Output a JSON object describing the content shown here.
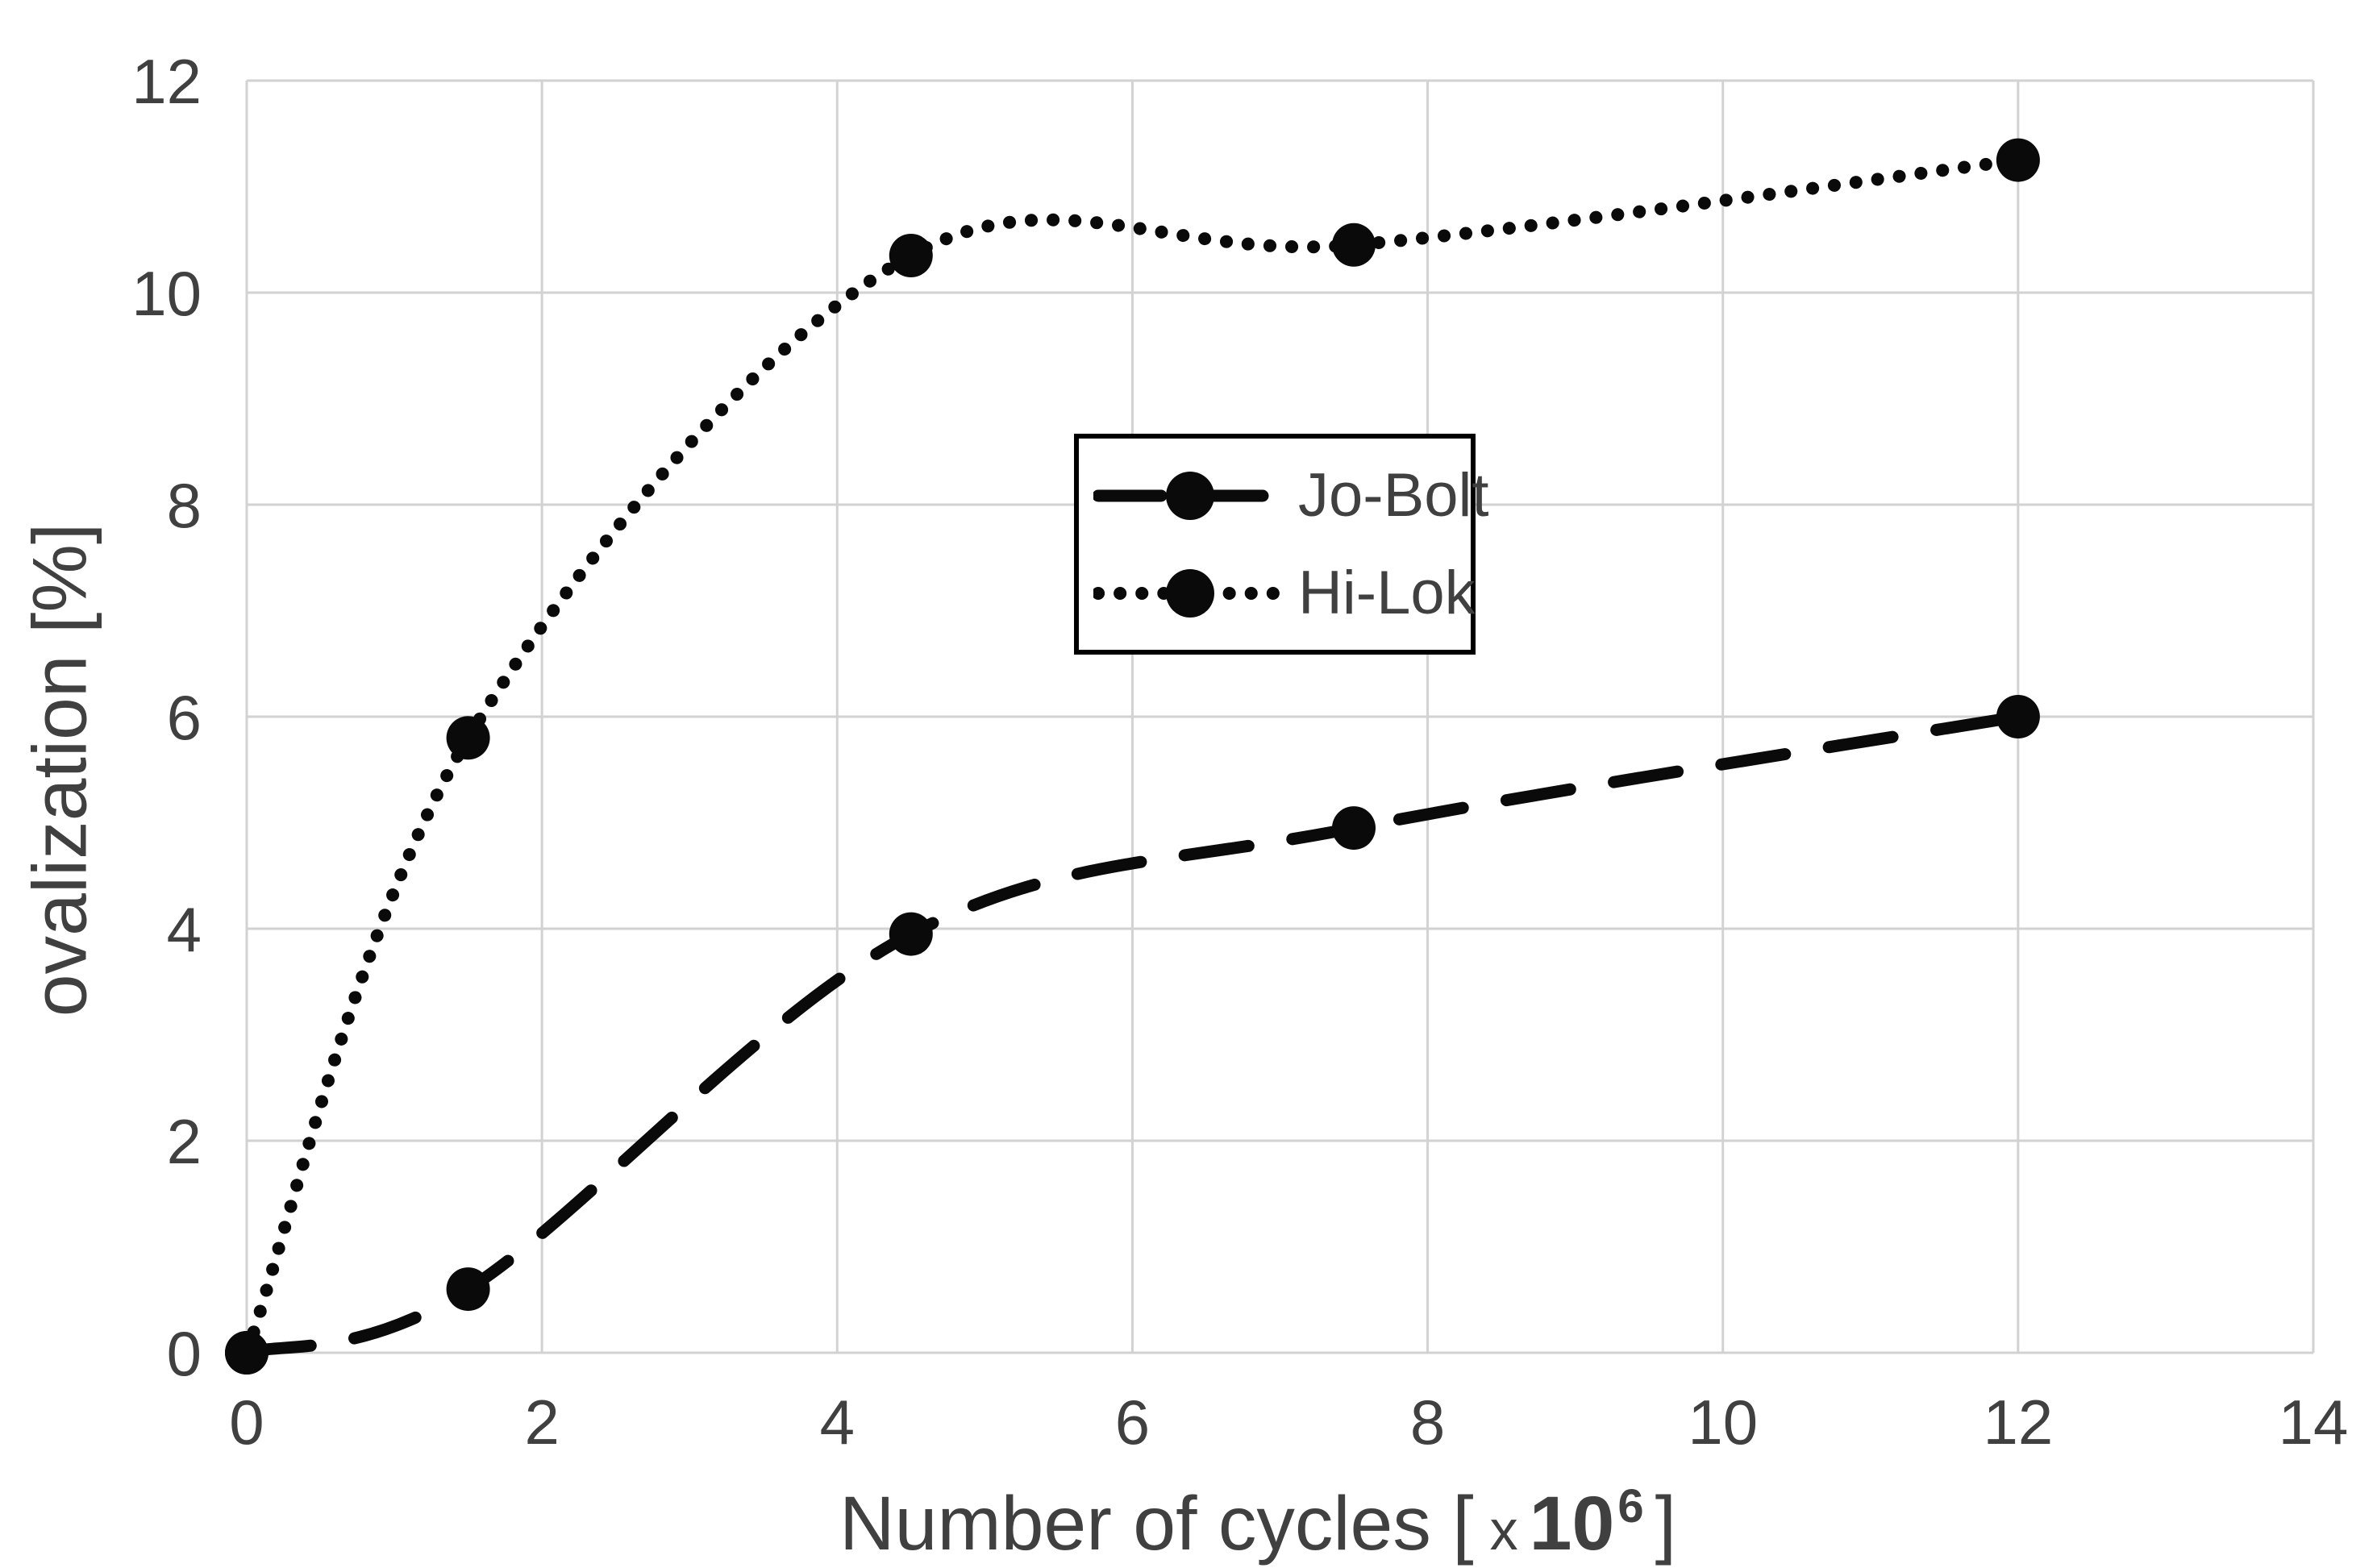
{
  "figure": {
    "background": "#ffffff"
  },
  "colors": {
    "text": "#404040",
    "grid": "#d2d2d2",
    "series_stroke": "#0a0a0a",
    "legend_border": "#000000",
    "legend_background": "#ffffff"
  },
  "chart_data": {
    "type": "line",
    "title": "",
    "xlabel": {
      "prefix": "Number of cycles [",
      "multiplier": "x",
      "base": "10",
      "exponent": "6",
      "suffix": "]"
    },
    "ylabel": "ovalization [%]",
    "xlim": [
      0,
      14
    ],
    "ylim": [
      0,
      12
    ],
    "x_ticks": [
      0,
      2,
      4,
      6,
      8,
      10,
      12,
      14
    ],
    "y_ticks": [
      0,
      2,
      4,
      6,
      8,
      10,
      12
    ],
    "grid": true,
    "legend": {
      "position": "inside-top-center",
      "border": true
    },
    "series": [
      {
        "name": "Jo-Bolt",
        "line_style": "dashed",
        "marker": "filled-circle",
        "color": "#0a0a0a",
        "x": [
          0,
          1.5,
          4.5,
          7.5,
          12
        ],
        "y": [
          0,
          0.6,
          3.95,
          4.95,
          6.0
        ]
      },
      {
        "name": "Hi-Lok",
        "line_style": "dotted",
        "marker": "filled-circle",
        "color": "#0a0a0a",
        "x": [
          0,
          1.5,
          4.5,
          7.5,
          12
        ],
        "y": [
          0,
          5.8,
          10.35,
          10.45,
          11.25
        ]
      }
    ]
  }
}
